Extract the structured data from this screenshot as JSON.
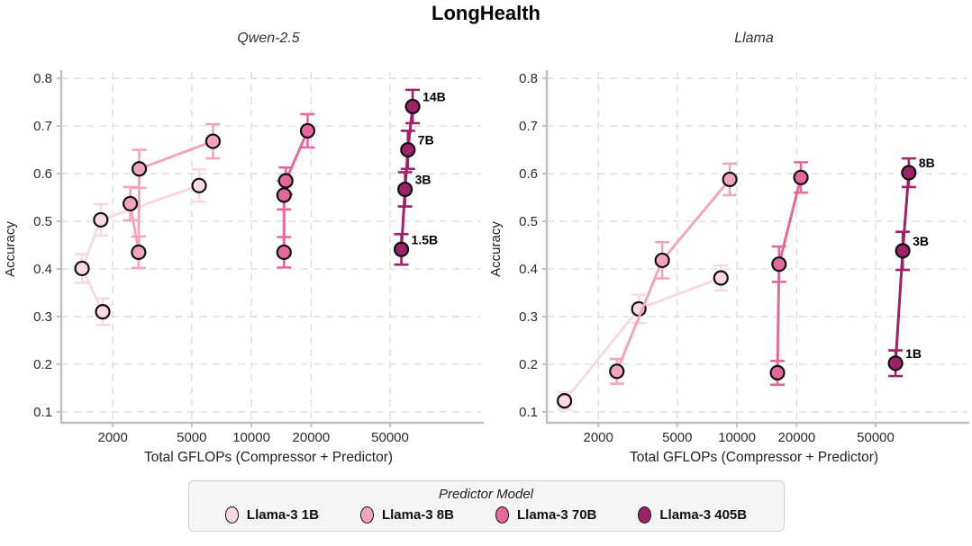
{
  "page_title": "LongHealth",
  "colors": {
    "predictor_1b": "#f9d9e3",
    "predictor_8b": "#f1a5bf",
    "predictor_70b": "#e5689d",
    "predictor_405b": "#9c2368",
    "marker_edge": "#111111",
    "grid": "#dcdcdc",
    "spine": "#c0c0c0",
    "tick_text": "#2b2b2b",
    "axis_text": "#222222"
  },
  "legend": {
    "title": "Predictor Model",
    "items": [
      {
        "label": "Llama-3 1B",
        "color": "#f9d9e3"
      },
      {
        "label": "Llama-3 8B",
        "color": "#f1a5bf"
      },
      {
        "label": "Llama-3 70B",
        "color": "#e5689d"
      },
      {
        "label": "Llama-3 405B",
        "color": "#9c2368"
      }
    ]
  },
  "chart_data": [
    {
      "type": "line",
      "title": "Qwen-2.5",
      "xlabel": "Total GFLOPs (Compressor + Predictor)",
      "ylabel": "Accuracy",
      "xscale": "log",
      "xlim": [
        1100,
        135000
      ],
      "ylim": [
        0.077,
        0.806
      ],
      "xticks": [
        2000,
        5000,
        10000,
        20000,
        50000
      ],
      "xtick_labels": [
        "2000",
        "5000",
        "10000",
        "20000",
        "50000"
      ],
      "yticks": [
        0.1,
        0.2,
        0.3,
        0.4,
        0.5,
        0.6,
        0.7,
        0.8
      ],
      "ytick_labels": [
        "0.1",
        "0.2",
        "0.3",
        "0.4",
        "0.5",
        "0.6",
        "0.7",
        "0.8"
      ],
      "grid": true,
      "series": [
        {
          "name": "Llama-3 1B",
          "color": "#f9d9e3",
          "points": [
            {
              "x": 1780,
              "y": 0.31,
              "err": 0.028
            },
            {
              "x": 1400,
              "y": 0.401,
              "err": 0.03
            },
            {
              "x": 1740,
              "y": 0.503,
              "err": 0.033
            },
            {
              "x": 5450,
              "y": 0.575,
              "err": 0.034
            }
          ]
        },
        {
          "name": "Llama-3 8B",
          "color": "#f1a5bf",
          "points": [
            {
              "x": 2450,
              "y": 0.537,
              "err": 0.035
            },
            {
              "x": 2700,
              "y": 0.435,
              "err": 0.033
            },
            {
              "x": 2720,
              "y": 0.61,
              "err": 0.04
            },
            {
              "x": 6400,
              "y": 0.668,
              "err": 0.036
            }
          ]
        },
        {
          "name": "Llama-3 70B",
          "color": "#e5689d",
          "points": [
            {
              "x": 14600,
              "y": 0.435,
              "err": 0.032
            },
            {
              "x": 14600,
              "y": 0.555,
              "err": 0.03
            },
            {
              "x": 14900,
              "y": 0.585,
              "err": 0.028
            },
            {
              "x": 19200,
              "y": 0.69,
              "err": 0.035
            }
          ]
        },
        {
          "name": "Llama-3 405B",
          "color": "#9c2368",
          "points": [
            {
              "x": 57000,
              "y": 0.441,
              "err": 0.032,
              "label": "1.5B"
            },
            {
              "x": 59500,
              "y": 0.567,
              "err": 0.036,
              "label": "3B"
            },
            {
              "x": 61500,
              "y": 0.65,
              "err": 0.04,
              "label": "7B"
            },
            {
              "x": 65000,
              "y": 0.741,
              "err": 0.035,
              "label": "14B"
            }
          ]
        }
      ]
    },
    {
      "type": "line",
      "title": "Llama",
      "xlabel": "Total GFLOPs (Compressor + Predictor)",
      "ylabel": "Accuracy",
      "xscale": "log",
      "xlim": [
        1100,
        135000
      ],
      "ylim": [
        0.077,
        0.806
      ],
      "xticks": [
        2000,
        5000,
        10000,
        20000,
        50000
      ],
      "xtick_labels": [
        "2000",
        "5000",
        "10000",
        "20000",
        "50000"
      ],
      "yticks": [
        0.1,
        0.2,
        0.3,
        0.4,
        0.5,
        0.6,
        0.7,
        0.8
      ],
      "ytick_labels": [
        "0.1",
        "0.2",
        "0.3",
        "0.4",
        "0.5",
        "0.6",
        "0.7",
        "0.8"
      ],
      "grid": true,
      "series": [
        {
          "name": "Llama-3 1B",
          "color": "#f9d9e3",
          "points": [
            {
              "x": 1350,
              "y": 0.123,
              "err": 0.018
            },
            {
              "x": 3200,
              "y": 0.316,
              "err": 0.03
            },
            {
              "x": 8300,
              "y": 0.381,
              "err": 0.026
            }
          ]
        },
        {
          "name": "Llama-3 8B",
          "color": "#f1a5bf",
          "points": [
            {
              "x": 2480,
              "y": 0.185,
              "err": 0.026
            },
            {
              "x": 4200,
              "y": 0.418,
              "err": 0.038
            },
            {
              "x": 9200,
              "y": 0.588,
              "err": 0.033
            }
          ]
        },
        {
          "name": "Llama-3 70B",
          "color": "#e5689d",
          "points": [
            {
              "x": 16000,
              "y": 0.182,
              "err": 0.025
            },
            {
              "x": 16300,
              "y": 0.41,
              "err": 0.037
            },
            {
              "x": 21000,
              "y": 0.592,
              "err": 0.032
            }
          ]
        },
        {
          "name": "Llama-3 405B",
          "color": "#9c2368",
          "points": [
            {
              "x": 63000,
              "y": 0.202,
              "err": 0.027,
              "label": "1B"
            },
            {
              "x": 68500,
              "y": 0.438,
              "err": 0.04,
              "label": "3B"
            },
            {
              "x": 73500,
              "y": 0.602,
              "err": 0.03,
              "label": "8B"
            }
          ]
        }
      ]
    }
  ]
}
